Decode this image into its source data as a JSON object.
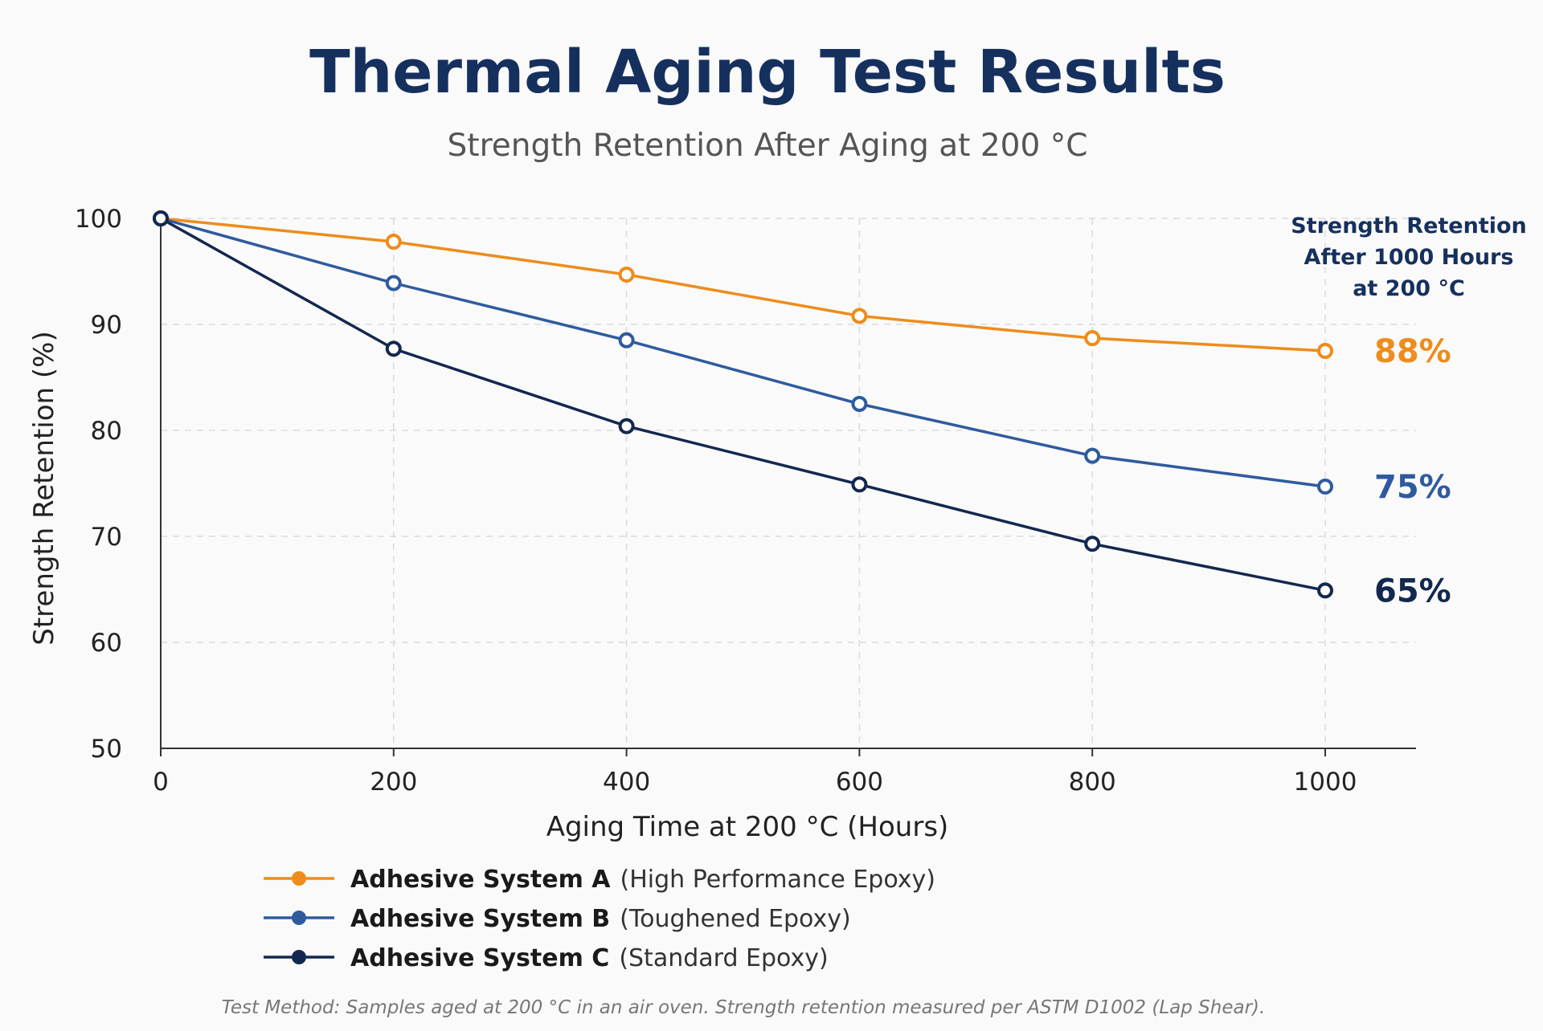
{
  "chart_data": {
    "type": "line",
    "title": "Thermal Aging Test Results",
    "subtitle": "Strength Retention After Aging at 200 °C",
    "xlabel": "Aging Time at 200 °C (Hours)",
    "ylabel": "Strength Retention (%)",
    "x": [
      0,
      200,
      400,
      600,
      800,
      1000
    ],
    "xlim": [
      0,
      1000
    ],
    "ylim": [
      50,
      100
    ],
    "xticks": [
      "0",
      "200",
      "400",
      "600",
      "800",
      "1000"
    ],
    "yticks": [
      "50",
      "60",
      "70",
      "80",
      "90",
      "100"
    ],
    "grid": true,
    "legend_position": "bottom-left",
    "series": [
      {
        "name": "Adhesive System A",
        "description": "(High Performance Epoxy)",
        "color": "#ee8c1c",
        "values": [
          100,
          97.8,
          94.7,
          90.8,
          88.7,
          87.5
        ],
        "end_label": "88%"
      },
      {
        "name": "Adhesive System B",
        "description": "(Toughened Epoxy)",
        "color": "#2f5b9e",
        "values": [
          100,
          93.9,
          88.5,
          82.5,
          77.6,
          74.7
        ],
        "end_label": "75%"
      },
      {
        "name": "Adhesive System C",
        "description": "(Standard Epoxy)",
        "color": "#13284e",
        "values": [
          100,
          87.7,
          80.4,
          74.9,
          69.3,
          64.9
        ],
        "end_label": "65%"
      }
    ],
    "annotation": {
      "lines": [
        "Strength Retention",
        "After 1000 Hours",
        "at 200 °C"
      ]
    },
    "footnote": "Test Method: Samples aged at 200 °C in an air oven. Strength retention measured per ASTM D1002 (Lap Shear)."
  }
}
